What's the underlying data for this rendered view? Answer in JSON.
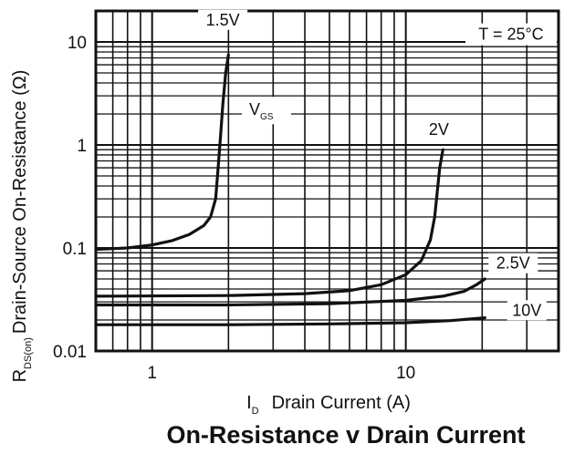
{
  "chart_data": {
    "type": "line",
    "title": "On-Resistance v Drain Current",
    "xlabel_symbol": "I",
    "xlabel_subscript": "D",
    "xlabel_text": "Drain Current (A)",
    "ylabel_symbol": "R",
    "ylabel_subscript": "DS(on)",
    "ylabel_text": "Drain-Source On-Resistance (Ω)",
    "x_scale": "log",
    "y_scale": "log",
    "xlim": [
      0.6,
      40
    ],
    "ylim": [
      0.01,
      20
    ],
    "x_ticks": [
      {
        "value": 1,
        "label": "1"
      },
      {
        "value": 10,
        "label": "10"
      }
    ],
    "y_ticks": [
      {
        "value": 0.01,
        "label": "0.01"
      },
      {
        "value": 0.1,
        "label": "0.1"
      },
      {
        "value": 1,
        "label": "1"
      },
      {
        "value": 10,
        "label": "10"
      }
    ],
    "grid": true,
    "condition_label": "T = 25°C",
    "vgs_symbol": "V",
    "vgs_subscript": "GS",
    "series": [
      {
        "name": "1.5V",
        "x": [
          0.6,
          0.8,
          1.0,
          1.2,
          1.4,
          1.6,
          1.7,
          1.78,
          1.82,
          1.86,
          1.9,
          1.95,
          2.0
        ],
        "y": [
          0.097,
          0.1,
          0.107,
          0.118,
          0.135,
          0.165,
          0.2,
          0.3,
          0.6,
          1.2,
          2.5,
          5.0,
          7.5
        ]
      },
      {
        "name": "2V",
        "x": [
          0.6,
          2,
          4,
          6,
          8,
          10,
          11.5,
          12.5,
          13.0,
          13.3,
          13.6,
          14.0
        ],
        "y": [
          0.034,
          0.0345,
          0.036,
          0.0385,
          0.044,
          0.055,
          0.075,
          0.12,
          0.2,
          0.35,
          0.6,
          0.9
        ]
      },
      {
        "name": "2.5V",
        "x": [
          0.6,
          2,
          5,
          10,
          14,
          17,
          19,
          20.5
        ],
        "y": [
          0.028,
          0.028,
          0.0288,
          0.031,
          0.034,
          0.038,
          0.044,
          0.05
        ]
      },
      {
        "name": "10V",
        "x": [
          0.6,
          2,
          5,
          10,
          15,
          20.5
        ],
        "y": [
          0.018,
          0.018,
          0.0183,
          0.0188,
          0.0197,
          0.021
        ]
      }
    ]
  }
}
